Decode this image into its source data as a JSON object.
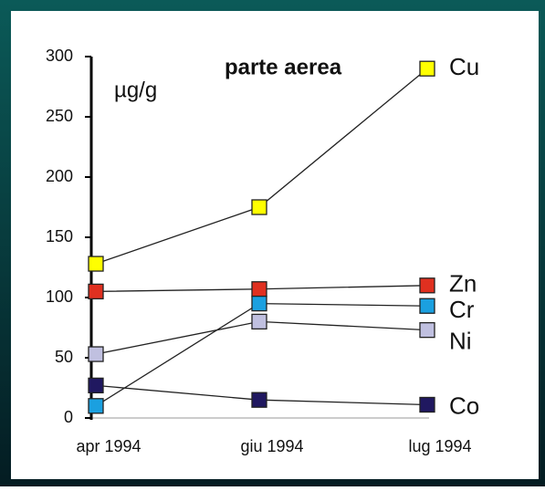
{
  "chart_data": {
    "type": "line",
    "title": "parte aerea",
    "y_label": "µg/g",
    "categories": [
      "apr 1994",
      "giu 1994",
      "lug 1994"
    ],
    "series": [
      {
        "name": "Cu",
        "color": "#ffff00",
        "values": [
          128,
          175,
          290
        ]
      },
      {
        "name": "Zn",
        "color": "#e03020",
        "values": [
          105,
          107,
          110
        ]
      },
      {
        "name": "Cr",
        "color": "#1ba0e0",
        "values": [
          10,
          95,
          93
        ]
      },
      {
        "name": "Ni",
        "color": "#c0c0e0",
        "values": [
          53,
          80,
          73
        ]
      },
      {
        "name": "Co",
        "color": "#201860",
        "values": [
          27,
          15,
          11
        ]
      }
    ],
    "ylim": [
      0,
      300
    ],
    "yticks": [
      0,
      50,
      100,
      150,
      200,
      250,
      300
    ]
  }
}
